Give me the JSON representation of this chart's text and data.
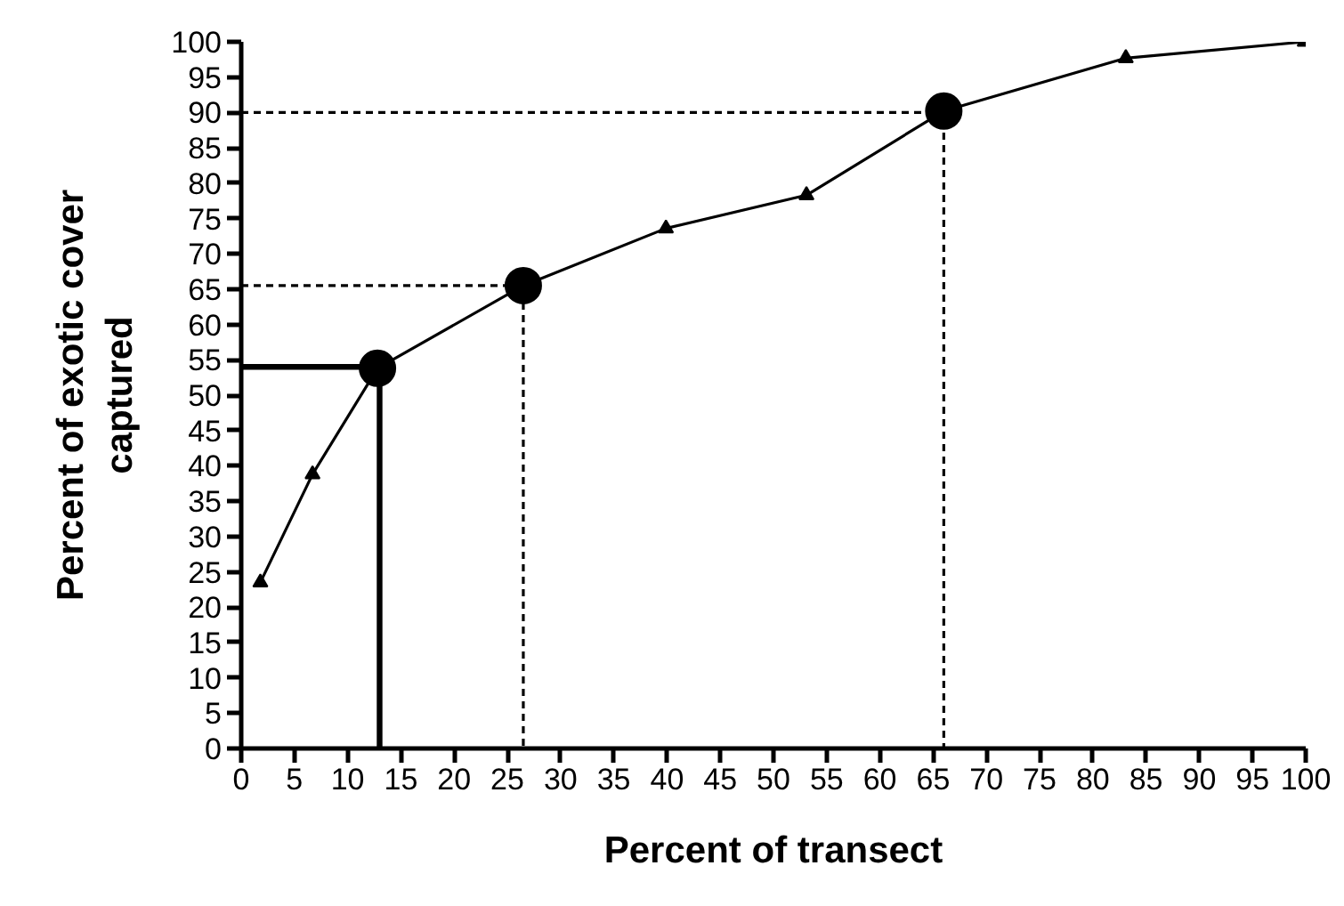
{
  "chart_data": {
    "type": "line",
    "xlabel": "Percent of transect",
    "ylabel": "Percent of exotic cover\ncaptured",
    "xlim": [
      0,
      100
    ],
    "ylim": [
      0,
      100
    ],
    "xticks": [
      0,
      5,
      10,
      15,
      20,
      25,
      30,
      35,
      40,
      45,
      50,
      55,
      60,
      65,
      70,
      75,
      80,
      85,
      90,
      95,
      100
    ],
    "yticks": [
      0,
      5,
      10,
      15,
      20,
      25,
      30,
      35,
      40,
      45,
      50,
      55,
      60,
      65,
      70,
      75,
      80,
      85,
      90,
      95,
      100
    ],
    "grid": false,
    "series": [
      {
        "color": "#000000",
        "marker": "triangle",
        "line_style": "solid",
        "x": [
          1.8,
          6.7,
          12.8,
          26.5,
          39.9,
          53.1,
          66.0,
          83.1,
          99.9
        ],
        "values": [
          23.5,
          38.8,
          53.8,
          65.5,
          73.6,
          78.3,
          90.2,
          97.7,
          100
        ]
      },
      {
        "type": "line",
        "color": "#000000",
        "marker": "none",
        "line_style": "solid",
        "x": [
          0,
          13,
          13
        ],
        "values": [
          54,
          54,
          0
        ]
      },
      {
        "type": "line",
        "color": "#000000",
        "marker": "none",
        "line_style": "dashed",
        "x": [
          0,
          26.5,
          26.5
        ],
        "values": [
          65.5,
          65.5,
          0
        ]
      },
      {
        "type": "line",
        "color": "#000000",
        "marker": "none",
        "line_style": "dashed",
        "x": [
          0,
          66,
          66
        ],
        "values": [
          90,
          90,
          0
        ]
      },
      {
        "type": "scatter",
        "color": "#000000",
        "marker": "circle",
        "x": [
          12.8,
          26.5,
          66.0
        ],
        "values": [
          53.8,
          65.5,
          90.2
        ]
      }
    ]
  }
}
